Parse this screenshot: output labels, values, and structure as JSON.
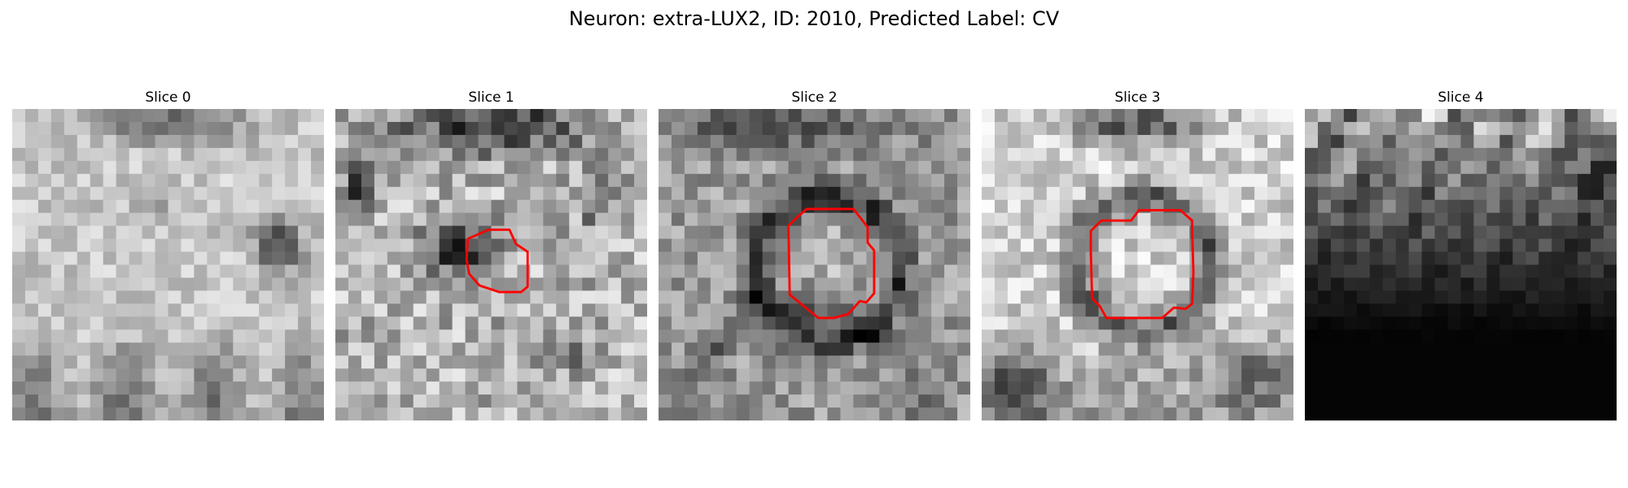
{
  "figure": {
    "title": "Neuron: extra-LUX2, ID: 2010, Predicted Label: CV"
  },
  "panels": [
    {
      "title": "Slice 0",
      "pattern": "bright-with-dark-blob-right",
      "outline": false,
      "outline_color": ""
    },
    {
      "title": "Slice 1",
      "pattern": "textured-dark-top",
      "outline": true,
      "outline_color": "#ff0000"
    },
    {
      "title": "Slice 2",
      "pattern": "ring-cell",
      "outline": true,
      "outline_color": "#ff0000"
    },
    {
      "title": "Slice 3",
      "pattern": "ring-cell-bright",
      "outline": true,
      "outline_color": "#ff0000"
    },
    {
      "title": "Slice 4",
      "pattern": "dark-fade-bottom",
      "outline": false,
      "outline_color": ""
    }
  ]
}
